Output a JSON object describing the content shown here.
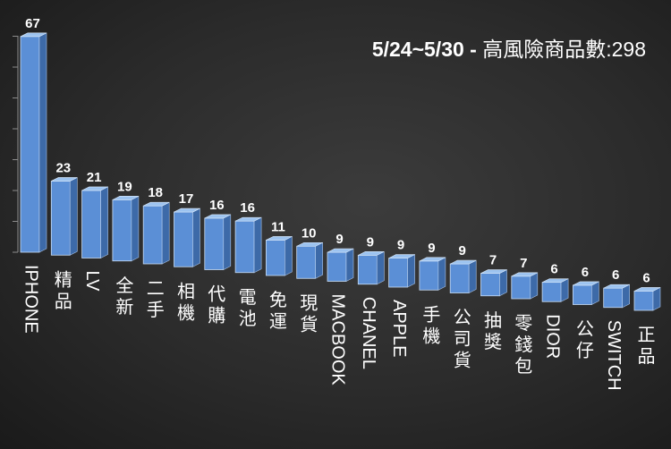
{
  "chart_data": {
    "type": "bar",
    "title_period": "5/24~5/30",
    "title_separator": " - ",
    "title_label": "高風險商品數:298",
    "categories": [
      "IPHONE",
      "精品",
      "LV",
      "全新",
      "二手",
      "相機",
      "代購",
      "電池",
      "免運",
      "現貨",
      "MACBOOK",
      "CHANEL",
      "APPLE",
      "手機",
      "公司貨",
      "抽獎",
      "零錢包",
      "DIOR",
      "公仔",
      "SWITCH",
      "正品"
    ],
    "values": [
      67,
      23,
      21,
      19,
      18,
      17,
      16,
      16,
      11,
      10,
      9,
      9,
      9,
      9,
      9,
      7,
      7,
      6,
      6,
      6,
      6
    ],
    "ylim": [
      0,
      70
    ],
    "grid": false,
    "colors": {
      "bar_front": "#5b8fd6",
      "bar_side": "#3d6aa8",
      "bar_top": "#9cc3f0",
      "text": "#ffffff",
      "axis": "#8c8c8c"
    }
  }
}
